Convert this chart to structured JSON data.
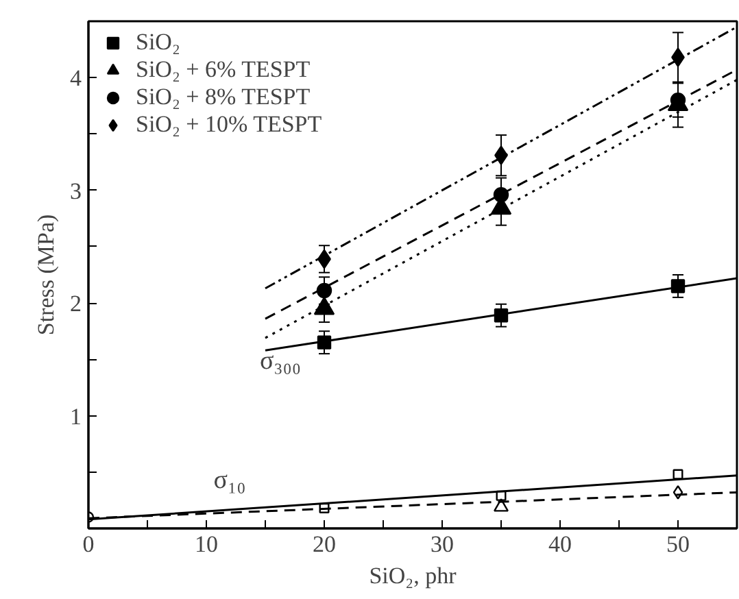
{
  "chart_data": {
    "type": "scatter",
    "xlabel": "SiO₂, phr",
    "ylabel": "Stress (MPa)",
    "xlim": [
      0,
      55
    ],
    "ylim": [
      0,
      4.5
    ],
    "xticks": [
      0,
      {
        "value": 5,
        "label": null
      },
      10,
      {
        "value": 15,
        "label": null
      },
      20,
      {
        "value": 25,
        "label": null
      },
      30,
      {
        "value": 35,
        "label": null
      },
      40,
      {
        "value": 45,
        "label": null
      },
      50
    ],
    "yticks": [
      {
        "value": 0.5,
        "label": null
      },
      1,
      {
        "value": 1.5,
        "label": null
      },
      2,
      {
        "value": 2.5,
        "label": null
      },
      3,
      {
        "value": 3.5,
        "label": null
      },
      4
    ],
    "grid": false,
    "legend": "top left",
    "annotations": [
      "σ₃₀₀",
      "σ₁₀"
    ],
    "series": [
      {
        "name": "SiO₂",
        "marker": "square",
        "color": "#000000",
        "x": [
          20,
          35,
          50
        ],
        "values": [
          1.65,
          1.89,
          2.15
        ],
        "errors": [
          0.1,
          0.1,
          0.1
        ]
      },
      {
        "name": "SiO₂ + 6% TESPT",
        "marker": "triangle",
        "color": "#000000",
        "x": [
          20,
          35,
          50
        ],
        "values": [
          1.95,
          2.84,
          3.76
        ],
        "errors": [
          0.12,
          0.15,
          0.2
        ]
      },
      {
        "name": "SiO₂ + 8% TESPT",
        "marker": "circle",
        "color": "#000000",
        "x": [
          20,
          35,
          50
        ],
        "values": [
          2.11,
          2.96,
          3.8
        ],
        "errors": [
          0.12,
          0.15,
          0.15
        ]
      },
      {
        "name": "SiO₂ + 10% TESPT",
        "marker": "diamond",
        "color": "#000000",
        "x": [
          20,
          35,
          50
        ],
        "values": [
          2.39,
          3.31,
          4.18
        ],
        "errors": [
          0.12,
          0.18,
          0.22
        ]
      },
      {
        "marker": "square",
        "color": "#000000",
        "x": [
          20,
          35,
          50
        ],
        "values": [
          0.18,
          0.29,
          0.48
        ]
      },
      {
        "marker": "triangle",
        "color": "#000000",
        "x": [
          35
        ],
        "values": [
          0.19
        ]
      },
      {
        "marker": "circle",
        "color": "#000000",
        "x": [
          0
        ],
        "values": [
          0.1
        ]
      },
      {
        "marker": "diamond",
        "color": "#000000",
        "x": [
          50
        ],
        "values": [
          0.32
        ]
      },
      {
        "type": "line",
        "line_style": "solid",
        "color": "#000000",
        "x": [
          15,
          55
        ],
        "values": [
          1.58,
          2.22
        ]
      },
      {
        "type": "line",
        "line_style": "dotted",
        "color": "#000000",
        "x": [
          15,
          55
        ],
        "values": [
          1.69,
          3.98
        ]
      },
      {
        "type": "line",
        "line_style": "dashed",
        "color": "#000000",
        "x": [
          15,
          55
        ],
        "values": [
          1.86,
          4.07
        ]
      },
      {
        "type": "line",
        "line_style": "dashdot",
        "color": "#000000",
        "x": [
          15,
          55
        ],
        "values": [
          2.13,
          4.45
        ]
      },
      {
        "type": "line",
        "line_style": "solid",
        "color": "#000000",
        "x": [
          0,
          55
        ],
        "values": [
          0.08,
          0.47
        ]
      },
      {
        "type": "line",
        "line_style": "dashed",
        "color": "#000000",
        "x": [
          0,
          55
        ],
        "values": [
          0.09,
          0.32
        ]
      }
    ]
  }
}
